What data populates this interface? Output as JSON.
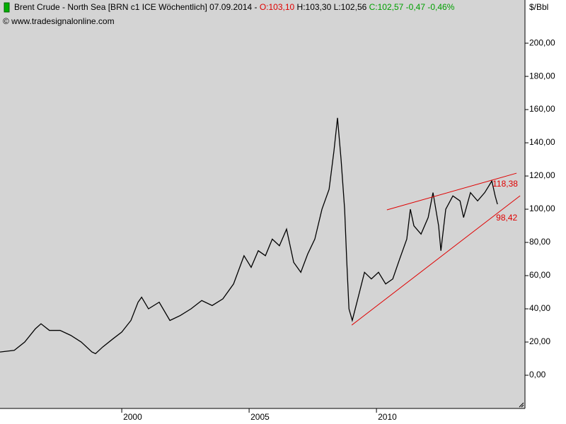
{
  "chart_data": {
    "type": "line",
    "title": [
      {
        "text": "Brent Crude - North Sea [BRN c1 ICE  Wöchentlich] 07.09.2014 - ",
        "color": "#000000"
      },
      {
        "text": "O:103,10",
        "color": "#e00000"
      },
      {
        "text": " H:103,30 L:102,56 ",
        "color": "#000000"
      },
      {
        "text": "C:102,57 -0,47 -0,46%",
        "color": "#00a000"
      }
    ],
    "subtitle": "© www.tradesignalonline.com",
    "y_label": "$/Bbl",
    "x": [
      1995.22,
      1995.78,
      1996.19,
      1996.61,
      1996.83,
      1997.16,
      1997.58,
      1998.0,
      1998.41,
      1998.83,
      1998.97,
      1999.25,
      1999.66,
      2000.0,
      2000.36,
      2000.64,
      2000.78,
      2001.05,
      2001.47,
      2001.89,
      2002.3,
      2002.72,
      2003.14,
      2003.55,
      2003.97,
      2004.39,
      2004.8,
      2005.08,
      2005.36,
      2005.64,
      2005.91,
      2006.19,
      2006.47,
      2006.75,
      2007.03,
      2007.3,
      2007.58,
      2007.86,
      2008.14,
      2008.33,
      2008.47,
      2008.61,
      2008.75,
      2008.83,
      2008.92,
      2009.05,
      2009.25,
      2009.53,
      2009.8,
      2010.08,
      2010.36,
      2010.64,
      2010.91,
      2011.19,
      2011.33,
      2011.47,
      2011.75,
      2012.03,
      2012.22,
      2012.44,
      2012.53,
      2012.72,
      2013.0,
      2013.28,
      2013.42,
      2013.69,
      2013.97,
      2014.25,
      2014.53,
      2014.66,
      2014.75
    ],
    "series": [
      {
        "color": "#000000",
        "values": [
          14,
          15,
          20,
          28,
          31,
          27,
          27,
          24,
          20,
          14,
          13,
          17,
          22,
          26,
          33,
          44,
          47,
          40,
          44,
          33,
          36,
          40,
          45,
          42,
          46,
          55,
          72,
          65,
          75,
          72,
          82,
          78,
          88,
          68,
          62,
          73,
          82,
          100,
          112,
          135,
          155,
          130,
          100,
          70,
          40,
          33,
          45,
          62,
          58,
          62,
          55,
          58,
          70,
          82,
          100,
          90,
          85,
          95,
          110,
          90,
          75,
          100,
          108,
          105,
          95,
          110,
          105,
          110,
          117,
          108,
          103
        ]
      }
    ],
    "trendlines": [
      {
        "x": [
          2010.41,
          2015.5
        ],
        "values": [
          99.6,
          121.7
        ],
        "color": "#e00000",
        "label": "118,38"
      },
      {
        "x": [
          2009.03,
          2015.64
        ],
        "values": [
          30.2,
          108.1
        ],
        "color": "#e00000",
        "label": "98,42"
      }
    ],
    "xlim": [
      1995.22,
      2015.83
    ],
    "xticks": [
      {
        "value": 2000,
        "label": "2000"
      },
      {
        "value": 2005,
        "label": "2005"
      },
      {
        "value": 2010,
        "label": "2010"
      }
    ],
    "ylim": [
      -20,
      226
    ],
    "yticks": [
      {
        "value": 0,
        "label": "0,00"
      },
      {
        "value": 20,
        "label": "20,00"
      },
      {
        "value": 40,
        "label": "40,00"
      },
      {
        "value": 60,
        "label": "60,00"
      },
      {
        "value": 80,
        "label": "80,00"
      },
      {
        "value": 100,
        "label": "100,00"
      },
      {
        "value": 120,
        "label": "120,00"
      },
      {
        "value": 140,
        "label": "140,00"
      },
      {
        "value": 160,
        "label": "160,00"
      },
      {
        "value": 180,
        "label": "180,00"
      },
      {
        "value": 200,
        "label": "200,00"
      }
    ],
    "background": "#d4d4d4"
  }
}
